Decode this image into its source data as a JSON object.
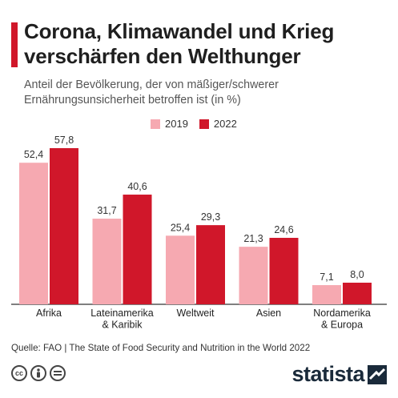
{
  "header": {
    "title": "Corona, Klimawandel und Krieg verschärfen den Welthunger",
    "subtitle": "Anteil der Bevölkerung, der von mäßiger/schwerer Ernährungsunsicherheit betroffen ist (in %)"
  },
  "footer": {
    "source": "Quelle: FAO | The State of Food Security and Nutrition in the World 2022",
    "brand": "statista",
    "license_icons": [
      "cc-icon",
      "person-icon",
      "equals-icon"
    ]
  },
  "colors": {
    "series_2019": "#f6a9b1",
    "series_2022": "#d0172a"
  },
  "chart_data": {
    "type": "bar",
    "categories": [
      [
        "Afrika"
      ],
      [
        "Lateinamerika",
        "& Karibik"
      ],
      [
        "Weltweit"
      ],
      [
        "Asien"
      ],
      [
        "Nordamerika",
        "& Europa"
      ]
    ],
    "series": [
      {
        "name": "2019",
        "values": [
          52.4,
          31.7,
          25.4,
          21.3,
          7.1
        ],
        "labels": [
          "52,4",
          "31,7",
          "25,4",
          "21,3",
          "7,1"
        ]
      },
      {
        "name": "2022",
        "values": [
          57.8,
          40.6,
          29.3,
          24.6,
          8.0
        ],
        "labels": [
          "57,8",
          "40,6",
          "29,3",
          "24,6",
          "8,0"
        ]
      }
    ],
    "ylim": [
      0,
      57.8
    ],
    "grid": false,
    "legend": "top-center"
  }
}
